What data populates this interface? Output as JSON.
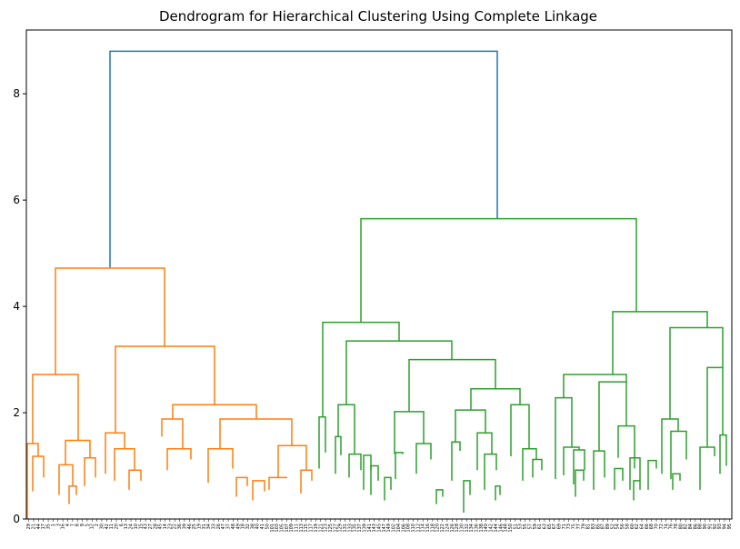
{
  "chart_data": {
    "type": "dendrogram",
    "title": "Dendrogram for Hierarchical Clustering Using Complete Linkage",
    "xlabel": "",
    "ylabel": "",
    "ylim": [
      0,
      9.2
    ],
    "yticks": [
      0,
      2,
      4,
      6,
      8
    ],
    "grid": false,
    "colors": {
      "root": "#1f77b4",
      "cluster_1": "#ff7f0e",
      "cluster_2": "#2ca02c",
      "axes": "#000000"
    },
    "links": [
      {
        "cluster": "root",
        "height": 8.8,
        "left_height": 4.72,
        "right_height": 5.65,
        "left_x": 121,
        "right_x": 547
      },
      {
        "cluster": "cluster_1",
        "height": 4.72,
        "left_height": 2.72,
        "right_height": 3.25,
        "left_x": 61,
        "right_x": 181
      },
      {
        "cluster": "cluster_1",
        "height": 3.25,
        "left_height": 1.62,
        "right_height": 2.15,
        "left_x": 127,
        "right_x": 236
      },
      {
        "cluster": "cluster_1",
        "height": 2.72,
        "left_height": 1.42,
        "right_height": 1.48,
        "left_x": 36,
        "right_x": 86
      },
      {
        "cluster": "cluster_1",
        "height": 2.15,
        "left_height": 1.88,
        "right_height": 1.88,
        "left_x": 190,
        "right_x": 282
      },
      {
        "cluster": "cluster_1",
        "height": 1.88,
        "left_height": 1.55,
        "right_height": 1.32,
        "left_x": 178,
        "right_x": 201
      },
      {
        "cluster": "cluster_1",
        "height": 1.88,
        "left_height": 1.32,
        "right_height": 1.38,
        "left_x": 242,
        "right_x": 321
      },
      {
        "cluster": "cluster_1",
        "height": 1.62,
        "left_height": 0.85,
        "right_height": 1.32,
        "left_x": 116,
        "right_x": 137
      },
      {
        "cluster": "cluster_1",
        "height": 1.48,
        "left_height": 1.02,
        "right_height": 1.15,
        "left_x": 72,
        "right_x": 99
      },
      {
        "cluster": "cluster_1",
        "height": 1.42,
        "left_height": 0,
        "right_height": 1.18,
        "left_x": 30,
        "right_x": 42
      },
      {
        "cluster": "cluster_1",
        "height": 1.38,
        "left_height": 0.78,
        "right_height": 0.92,
        "left_x": 306,
        "right_x": 337
      },
      {
        "cluster": "cluster_1",
        "height": 1.32,
        "left_height": 0.72,
        "right_height": 0.92,
        "left_x": 126,
        "right_x": 148
      },
      {
        "cluster": "cluster_1",
        "height": 1.32,
        "left_height": 0.68,
        "right_height": 0.95,
        "left_x": 229,
        "right_x": 256
      },
      {
        "cluster": "cluster_1",
        "height": 1.32,
        "left_height": 0.92,
        "right_height": 1.12,
        "left_x": 184,
        "right_x": 210
      },
      {
        "cluster": "cluster_1",
        "height": 1.18,
        "left_height": 0.52,
        "right_height": 0.78,
        "left_x": 36,
        "right_x": 48
      },
      {
        "cluster": "cluster_1",
        "height": 1.15,
        "left_height": 0.62,
        "right_height": 0.78,
        "left_x": 93,
        "right_x": 105
      },
      {
        "cluster": "cluster_1",
        "height": 1.02,
        "left_height": 0.45,
        "right_height": 0.62,
        "left_x": 65,
        "right_x": 80
      },
      {
        "cluster": "cluster_1",
        "height": 0.92,
        "left_height": 0.55,
        "right_height": 0.72,
        "left_x": 142,
        "right_x": 155
      },
      {
        "cluster": "cluster_1",
        "height": 0.92,
        "left_height": 0.48,
        "right_height": 0.72,
        "left_x": 331,
        "right_x": 343
      },
      {
        "cluster": "cluster_1",
        "height": 0.78,
        "left_height": 0.55,
        "right_height": 0.78,
        "left_x": 296,
        "right_x": 316
      },
      {
        "cluster": "cluster_1",
        "height": 0.78,
        "left_height": 0.42,
        "right_height": 0.62,
        "left_x": 260,
        "right_x": 272
      },
      {
        "cluster": "cluster_1",
        "height": 0.72,
        "left_height": 0.35,
        "right_height": 0.52,
        "left_x": 278,
        "right_x": 291
      },
      {
        "cluster": "cluster_1",
        "height": 0.62,
        "left_height": 0.28,
        "right_height": 0.45,
        "left_x": 76,
        "right_x": 84
      },
      {
        "cluster": "cluster_2",
        "height": 5.65,
        "left_height": 3.7,
        "right_height": 3.9,
        "left_x": 397,
        "right_x": 700
      },
      {
        "cluster": "cluster_2",
        "height": 3.9,
        "left_height": 2.72,
        "right_height": 3.6,
        "left_x": 674,
        "right_x": 778
      },
      {
        "cluster": "cluster_2",
        "height": 3.7,
        "left_height": 1.92,
        "right_height": 3.35,
        "left_x": 355,
        "right_x": 439
      },
      {
        "cluster": "cluster_2",
        "height": 3.6,
        "left_height": 1.88,
        "right_height": 2.85,
        "left_x": 737,
        "right_x": 795
      },
      {
        "cluster": "cluster_2",
        "height": 3.35,
        "left_height": 2.15,
        "right_height": 3.0,
        "left_x": 381,
        "right_x": 497
      },
      {
        "cluster": "cluster_2",
        "height": 3.0,
        "left_height": 2.02,
        "right_height": 2.45,
        "left_x": 450,
        "right_x": 545
      },
      {
        "cluster": "cluster_2",
        "height": 2.85,
        "left_height": 1.35,
        "right_height": 1.58,
        "left_x": 778,
        "right_x": 795
      },
      {
        "cluster": "cluster_2",
        "height": 2.72,
        "left_height": 2.28,
        "right_height": 2.58,
        "left_x": 620,
        "right_x": 689
      },
      {
        "cluster": "cluster_2",
        "height": 2.58,
        "left_height": 1.28,
        "right_height": 1.75,
        "left_x": 659,
        "right_x": 689
      },
      {
        "cluster": "cluster_2",
        "height": 2.45,
        "left_height": 2.05,
        "right_height": 2.15,
        "left_x": 518,
        "right_x": 572
      },
      {
        "cluster": "cluster_2",
        "height": 2.28,
        "left_height": 0.75,
        "right_height": 1.35,
        "left_x": 611,
        "right_x": 629
      },
      {
        "cluster": "cluster_2",
        "height": 2.15,
        "left_height": 1.55,
        "right_height": 1.22,
        "left_x": 372,
        "right_x": 390
      },
      {
        "cluster": "cluster_2",
        "height": 2.15,
        "left_height": 1.18,
        "right_height": 1.32,
        "left_x": 562,
        "right_x": 582
      },
      {
        "cluster": "cluster_2",
        "height": 2.05,
        "left_height": 1.45,
        "right_height": 1.62,
        "left_x": 501,
        "right_x": 534
      },
      {
        "cluster": "cluster_2",
        "height": 2.02,
        "left_height": 1.22,
        "right_height": 1.42,
        "left_x": 434,
        "right_x": 466
      },
      {
        "cluster": "cluster_2",
        "height": 1.92,
        "left_height": 0.95,
        "right_height": 1.25,
        "left_x": 351,
        "right_x": 358
      },
      {
        "cluster": "cluster_2",
        "height": 1.88,
        "left_height": 0.85,
        "right_height": 1.65,
        "left_x": 728,
        "right_x": 746
      },
      {
        "cluster": "cluster_2",
        "height": 1.75,
        "left_height": 1.15,
        "right_height": 0.95,
        "left_x": 680,
        "right_x": 698
      },
      {
        "cluster": "cluster_2",
        "height": 1.65,
        "left_height": 0.75,
        "right_height": 1.12,
        "left_x": 738,
        "right_x": 755
      },
      {
        "cluster": "cluster_2",
        "height": 1.62,
        "left_height": 0.92,
        "right_height": 1.22,
        "left_x": 525,
        "right_x": 541
      },
      {
        "cluster": "cluster_2",
        "height": 1.58,
        "left_height": 0.85,
        "right_height": 1.0,
        "left_x": 792,
        "right_x": 799
      },
      {
        "cluster": "cluster_2",
        "height": 1.55,
        "left_height": 0.85,
        "right_height": 1.2,
        "left_x": 369,
        "right_x": 375
      },
      {
        "cluster": "cluster_2",
        "height": 1.45,
        "left_height": 0.72,
        "right_height": 1.28,
        "left_x": 497,
        "right_x": 506
      },
      {
        "cluster": "cluster_2",
        "height": 1.42,
        "left_height": 0.85,
        "right_height": 1.12,
        "left_x": 458,
        "right_x": 474
      },
      {
        "cluster": "cluster_2",
        "height": 1.35,
        "left_height": 0.82,
        "right_height": 1.3,
        "left_x": 620,
        "right_x": 637
      },
      {
        "cluster": "cluster_2",
        "height": 1.35,
        "left_height": 0.55,
        "right_height": 1.18,
        "left_x": 770,
        "right_x": 786
      },
      {
        "cluster": "cluster_2",
        "height": 1.32,
        "left_height": 0.72,
        "right_height": 1.12,
        "left_x": 575,
        "right_x": 590
      },
      {
        "cluster": "cluster_2",
        "height": 1.3,
        "left_height": 0.65,
        "right_height": 0.92,
        "left_x": 631,
        "right_x": 643
      },
      {
        "cluster": "cluster_2",
        "height": 1.28,
        "left_height": 0.55,
        "right_height": 0.78,
        "left_x": 653,
        "right_x": 665
      },
      {
        "cluster": "cluster_2",
        "height": 1.25,
        "left_height": 0.75,
        "right_height": 1.22,
        "left_x": 435,
        "right_x": 443
      },
      {
        "cluster": "cluster_2",
        "height": 1.22,
        "left_height": 0.78,
        "right_height": 0.92,
        "left_x": 384,
        "right_x": 397
      },
      {
        "cluster": "cluster_2",
        "height": 1.22,
        "left_height": 0.55,
        "right_height": 0.92,
        "left_x": 533,
        "right_x": 546
      },
      {
        "cluster": "cluster_2",
        "height": 1.2,
        "left_height": 0.55,
        "right_height": 0.92,
        "left_x": 400,
        "right_x": 408
      },
      {
        "cluster": "cluster_2",
        "height": 1.15,
        "left_height": 0.55,
        "right_height": 0.72,
        "left_x": 693,
        "right_x": 704
      },
      {
        "cluster": "cluster_2",
        "height": 1.12,
        "left_height": 0.78,
        "right_height": 0.92,
        "left_x": 586,
        "right_x": 596
      },
      {
        "cluster": "cluster_2",
        "height": 1.1,
        "left_height": 0.55,
        "right_height": 0.95,
        "left_x": 713,
        "right_x": 722
      },
      {
        "cluster": "cluster_2",
        "height": 1.0,
        "left_height": 0.45,
        "right_height": 0.72,
        "left_x": 408,
        "right_x": 416
      },
      {
        "cluster": "cluster_2",
        "height": 0.95,
        "left_height": 0.55,
        "right_height": 0.72,
        "left_x": 676,
        "right_x": 685
      },
      {
        "cluster": "cluster_2",
        "height": 0.92,
        "left_height": 0.42,
        "right_height": 0.72,
        "left_x": 633,
        "right_x": 642
      },
      {
        "cluster": "cluster_2",
        "height": 0.85,
        "left_height": 0.55,
        "right_height": 0.72,
        "left_x": 740,
        "right_x": 748
      },
      {
        "cluster": "cluster_2",
        "height": 0.78,
        "left_height": 0.35,
        "right_height": 0.55,
        "left_x": 423,
        "right_x": 430
      },
      {
        "cluster": "cluster_2",
        "height": 0.72,
        "left_height": 0.12,
        "right_height": 0.45,
        "left_x": 510,
        "right_x": 517
      },
      {
        "cluster": "cluster_2",
        "height": 0.72,
        "left_height": 0.35,
        "right_height": 0.55,
        "left_x": 697,
        "right_x": 704
      },
      {
        "cluster": "cluster_2",
        "height": 0.62,
        "left_height": 0.35,
        "right_height": 0.45,
        "left_x": 545,
        "right_x": 550
      },
      {
        "cluster": "cluster_2",
        "height": 0.55,
        "left_height": 0.28,
        "right_height": 0.42,
        "left_x": 480,
        "right_x": 487
      }
    ],
    "leaf_labels": [
      "29",
      "21",
      "44",
      "17",
      "35",
      "1",
      "3",
      "16",
      "4",
      "7",
      "8",
      "9",
      "5",
      "12",
      "2",
      "30",
      "42",
      "11",
      "20",
      "6",
      "13",
      "24",
      "10",
      "15",
      "43",
      "27",
      "28",
      "45",
      "14",
      "23",
      "22",
      "36",
      "39",
      "46",
      "25",
      "19",
      "31",
      "34",
      "33",
      "26",
      "47",
      "37",
      "48",
      "49",
      "18",
      "32",
      "38",
      "40",
      "41",
      "50",
      "101",
      "103",
      "105",
      "107",
      "109",
      "111",
      "113",
      "115",
      "117",
      "119",
      "121",
      "123",
      "125",
      "127",
      "129",
      "131",
      "133",
      "135",
      "137",
      "139",
      "141",
      "143",
      "145",
      "147",
      "149",
      "102",
      "104",
      "106",
      "108",
      "110",
      "112",
      "114",
      "116",
      "118",
      "120",
      "122",
      "124",
      "126",
      "128",
      "130",
      "132",
      "134",
      "136",
      "138",
      "140",
      "142",
      "144",
      "146",
      "148",
      "150",
      "51",
      "53",
      "55",
      "57",
      "59",
      "61",
      "63",
      "65",
      "67",
      "69",
      "71",
      "73",
      "75",
      "77",
      "79",
      "81",
      "83",
      "85",
      "87",
      "89",
      "52",
      "54",
      "56",
      "58",
      "60",
      "62",
      "64",
      "66",
      "68",
      "70",
      "72",
      "74",
      "76",
      "78",
      "80",
      "82",
      "84",
      "86",
      "88",
      "90",
      "91",
      "92",
      "93",
      "94",
      "95"
    ]
  }
}
